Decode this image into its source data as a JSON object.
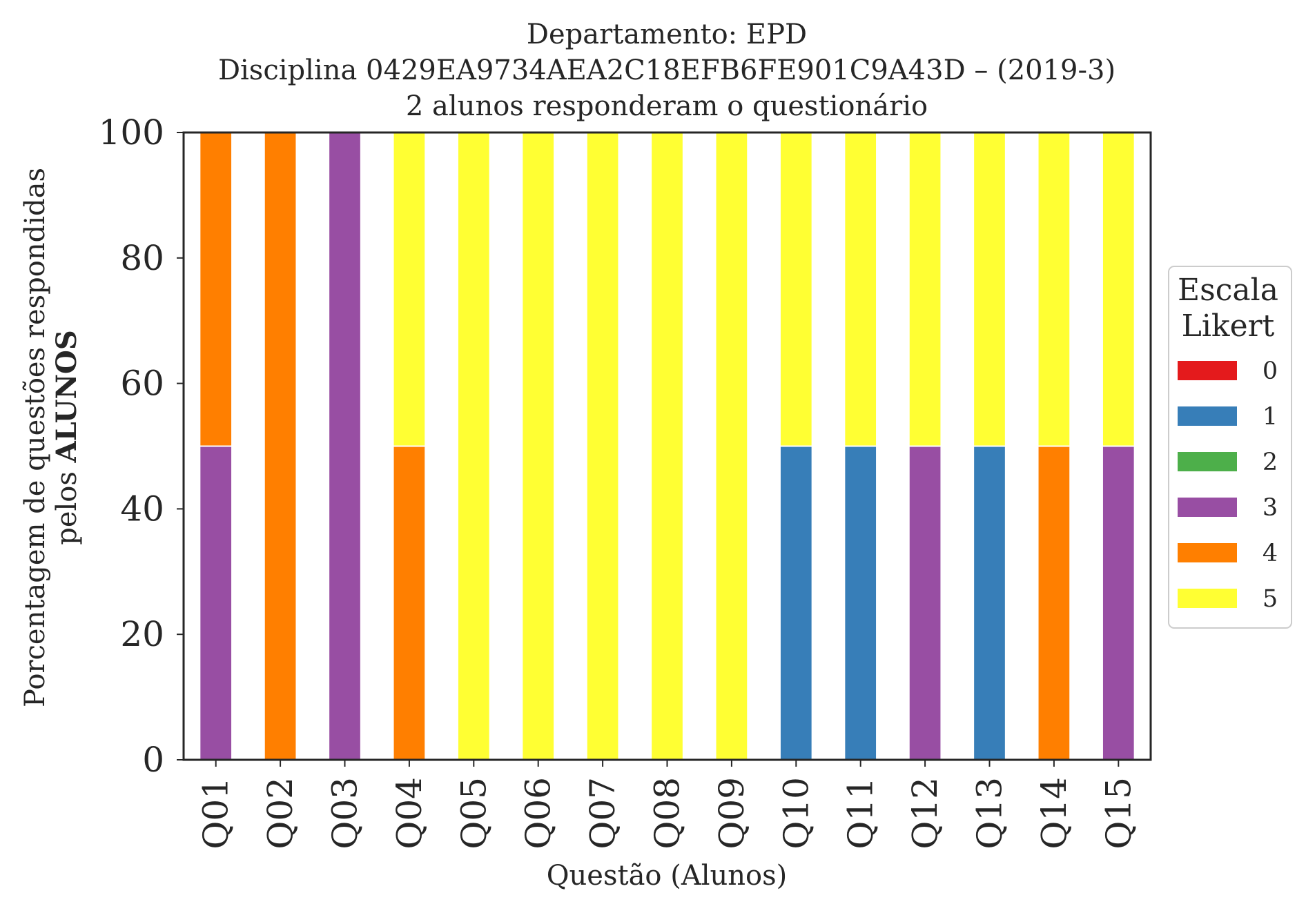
{
  "chart_data": {
    "type": "bar",
    "stacked": true,
    "title_lines": [
      "Departamento: EPD",
      "Disciplina 0429EA9734AEA2C18EFB6FE901C9A43D – (2019-3)",
      "2 alunos responderam o questionário"
    ],
    "xlabel": "Questão (Alunos)",
    "ylabel_line1": "Porcentagem de questões respondidas",
    "ylabel_line2_prefix": "pelos ",
    "ylabel_line2_bold": "ALUNOS",
    "ylim": [
      0,
      100
    ],
    "yticks": [
      "0",
      "20",
      "40",
      "60",
      "80",
      "100"
    ],
    "categories": [
      "Q01",
      "Q02",
      "Q03",
      "Q04",
      "Q05",
      "Q06",
      "Q07",
      "Q08",
      "Q09",
      "Q10",
      "Q11",
      "Q12",
      "Q13",
      "Q14",
      "Q15"
    ],
    "legend_title_lines": [
      "Escala",
      "Likert"
    ],
    "legend_position": "right",
    "grid": false,
    "series": [
      {
        "name": "0",
        "color": "#e41a1c",
        "values": [
          0,
          0,
          0,
          0,
          0,
          0,
          0,
          0,
          0,
          0,
          0,
          0,
          0,
          0,
          0
        ]
      },
      {
        "name": "1",
        "color": "#377eb8",
        "values": [
          0,
          0,
          0,
          0,
          0,
          0,
          0,
          0,
          0,
          50,
          50,
          0,
          50,
          0,
          0
        ]
      },
      {
        "name": "2",
        "color": "#4daf4a",
        "values": [
          0,
          0,
          0,
          0,
          0,
          0,
          0,
          0,
          0,
          0,
          0,
          0,
          0,
          0,
          0
        ]
      },
      {
        "name": "3",
        "color": "#984ea3",
        "values": [
          50,
          0,
          100,
          0,
          0,
          0,
          0,
          0,
          0,
          0,
          0,
          50,
          0,
          0,
          50
        ]
      },
      {
        "name": "4",
        "color": "#ff7f00",
        "values": [
          50,
          100,
          0,
          50,
          0,
          0,
          0,
          0,
          0,
          0,
          0,
          0,
          0,
          50,
          0
        ]
      },
      {
        "name": "5",
        "color": "#ffff33",
        "values": [
          0,
          0,
          0,
          50,
          100,
          100,
          100,
          100,
          100,
          50,
          50,
          50,
          50,
          50,
          50
        ]
      }
    ]
  }
}
